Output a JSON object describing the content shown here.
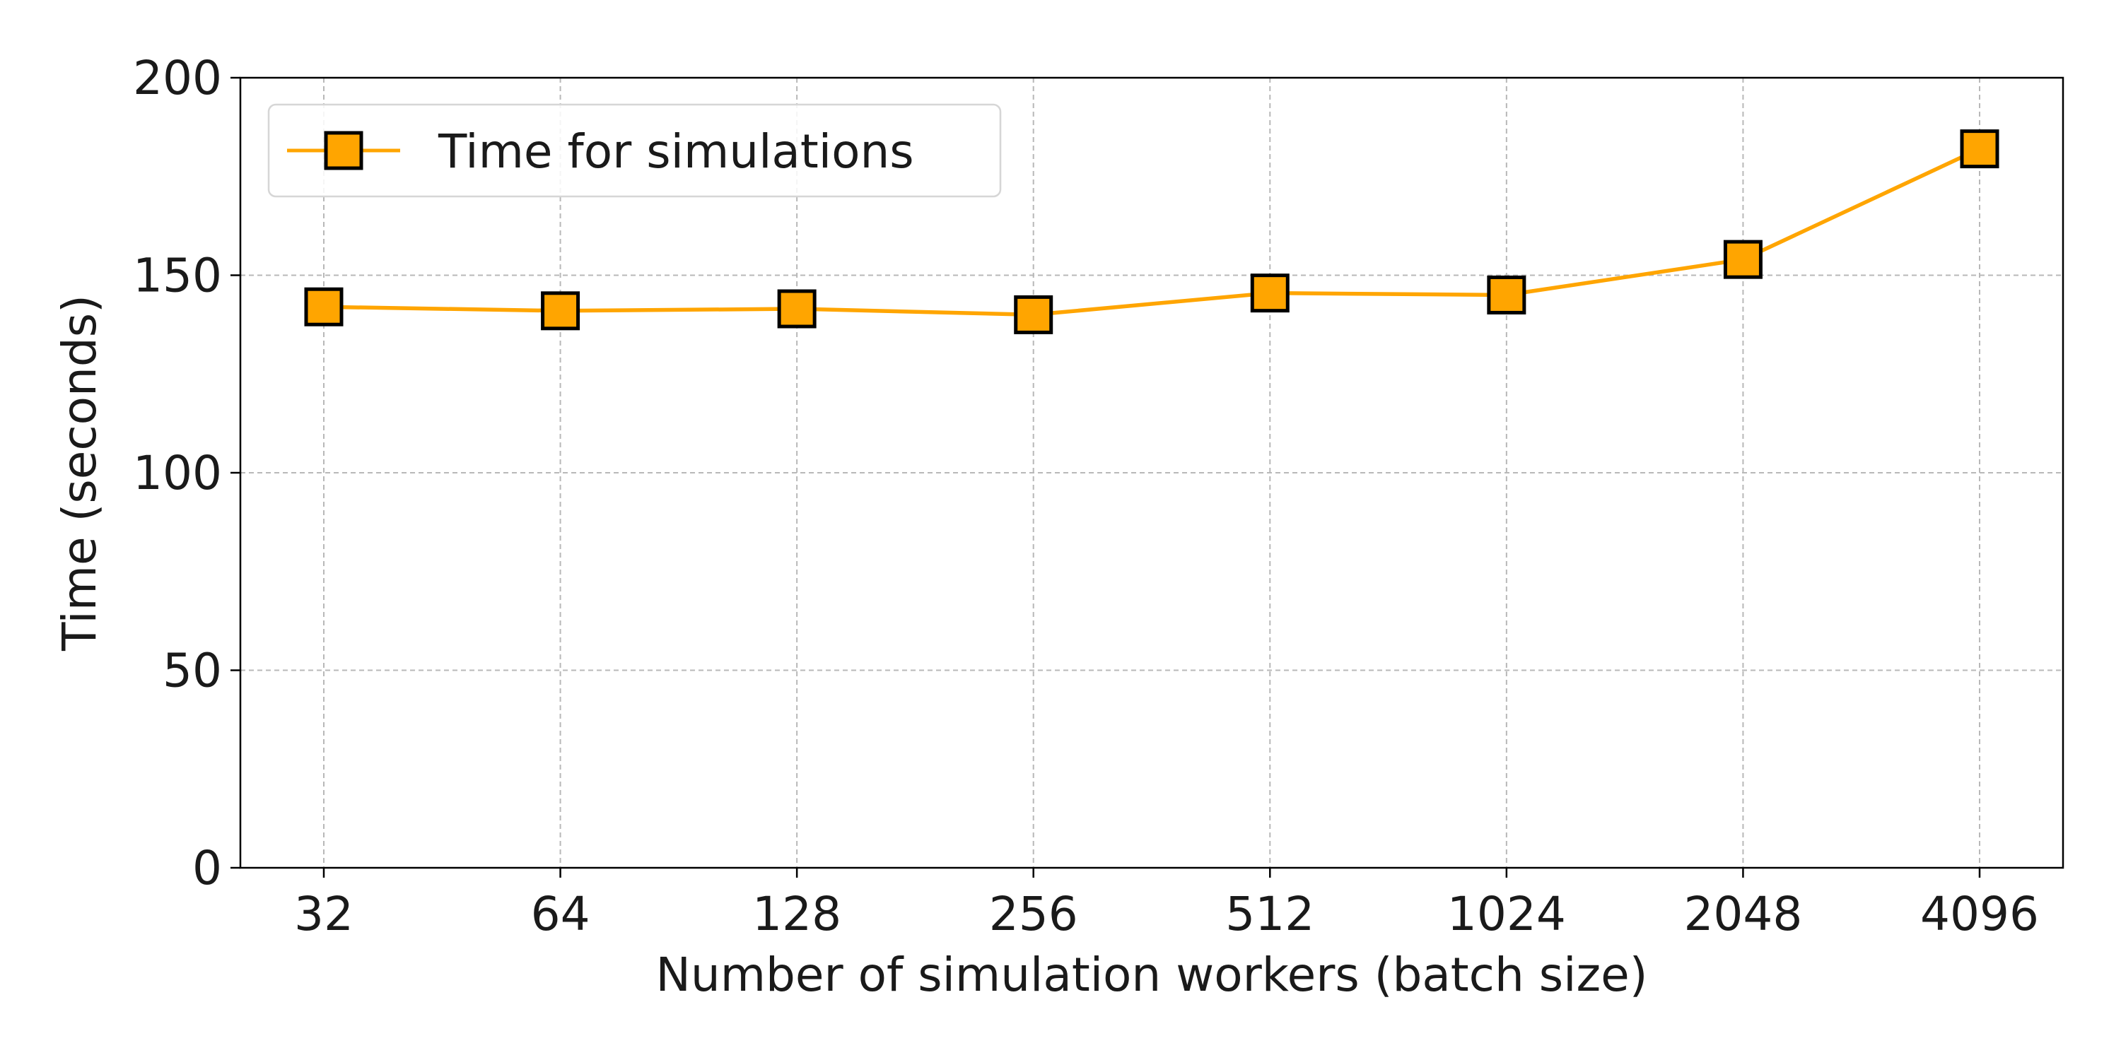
{
  "chart_data": {
    "type": "line",
    "title": "",
    "xlabel": "Number of simulation workers (batch size)",
    "ylabel": "Time (seconds)",
    "categories": [
      "32",
      "64",
      "128",
      "256",
      "512",
      "1024",
      "2048",
      "4096"
    ],
    "series": [
      {
        "name": "Time for simulations",
        "values": [
          142,
          141,
          141.5,
          140,
          145.5,
          145,
          154,
          182
        ],
        "color": "#FFA500",
        "marker": "square",
        "marker_edge_color": "#000000"
      }
    ],
    "ylim": [
      0,
      200
    ],
    "yticks": [
      "0",
      "50",
      "100",
      "150",
      "200"
    ],
    "grid": true,
    "legend_position": "top-left"
  }
}
